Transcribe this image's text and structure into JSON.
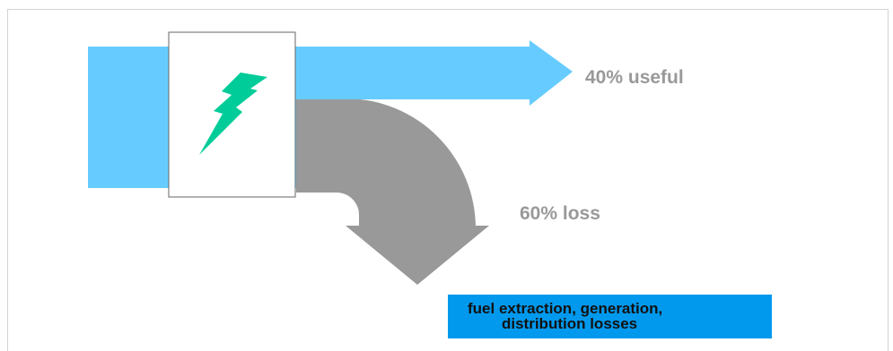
{
  "flows": [
    {
      "label": "40% useful",
      "percent": 40,
      "color": "#66CCFF",
      "label_color": "#999999"
    },
    {
      "label": "60% loss",
      "percent": 60,
      "color": "#999999",
      "label_color": "#999999"
    }
  ],
  "source_icon": {
    "icon": "lightning-bolt-icon",
    "color": "#00CC99"
  },
  "note": {
    "line1": "fuel extraction, generation,",
    "line2": "distribution losses",
    "background": "#0099EE"
  }
}
